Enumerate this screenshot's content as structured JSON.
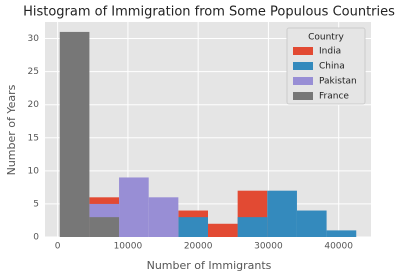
{
  "chart_data": {
    "type": "histogram",
    "title": "Histogram of Immigration from Some Populous Countries",
    "x_label": "Number of Immigrants",
    "y_label": "Number of Years",
    "bins": [
      300,
      4520,
      8740,
      12960,
      17180,
      21400,
      25620,
      29840,
      34060,
      38280,
      42500
    ],
    "series": [
      {
        "name": "India",
        "color": "#E24A33",
        "values": [
          0,
          6,
          0,
          0,
          4,
          2,
          7,
          0,
          0,
          0
        ]
      },
      {
        "name": "China",
        "color": "#348ABD",
        "values": [
          0,
          0,
          0,
          0,
          3,
          0,
          3,
          7,
          4,
          1
        ]
      },
      {
        "name": "Pakistan",
        "color": "#988ED5",
        "values": [
          0,
          5,
          9,
          6,
          0,
          0,
          0,
          0,
          0,
          0
        ]
      },
      {
        "name": "France",
        "color": "#777777",
        "values": [
          31,
          3,
          0,
          0,
          0,
          0,
          0,
          0,
          0,
          0
        ]
      }
    ],
    "legend_title": "Country",
    "legend_position": "upper right",
    "xlim": [
      -1800,
      44600
    ],
    "xticks": [
      0,
      10000,
      20000,
      30000,
      40000
    ],
    "ylim": [
      0,
      32.5
    ],
    "yticks": [
      0,
      5,
      10,
      15,
      20,
      25,
      30
    ],
    "grid": true
  }
}
